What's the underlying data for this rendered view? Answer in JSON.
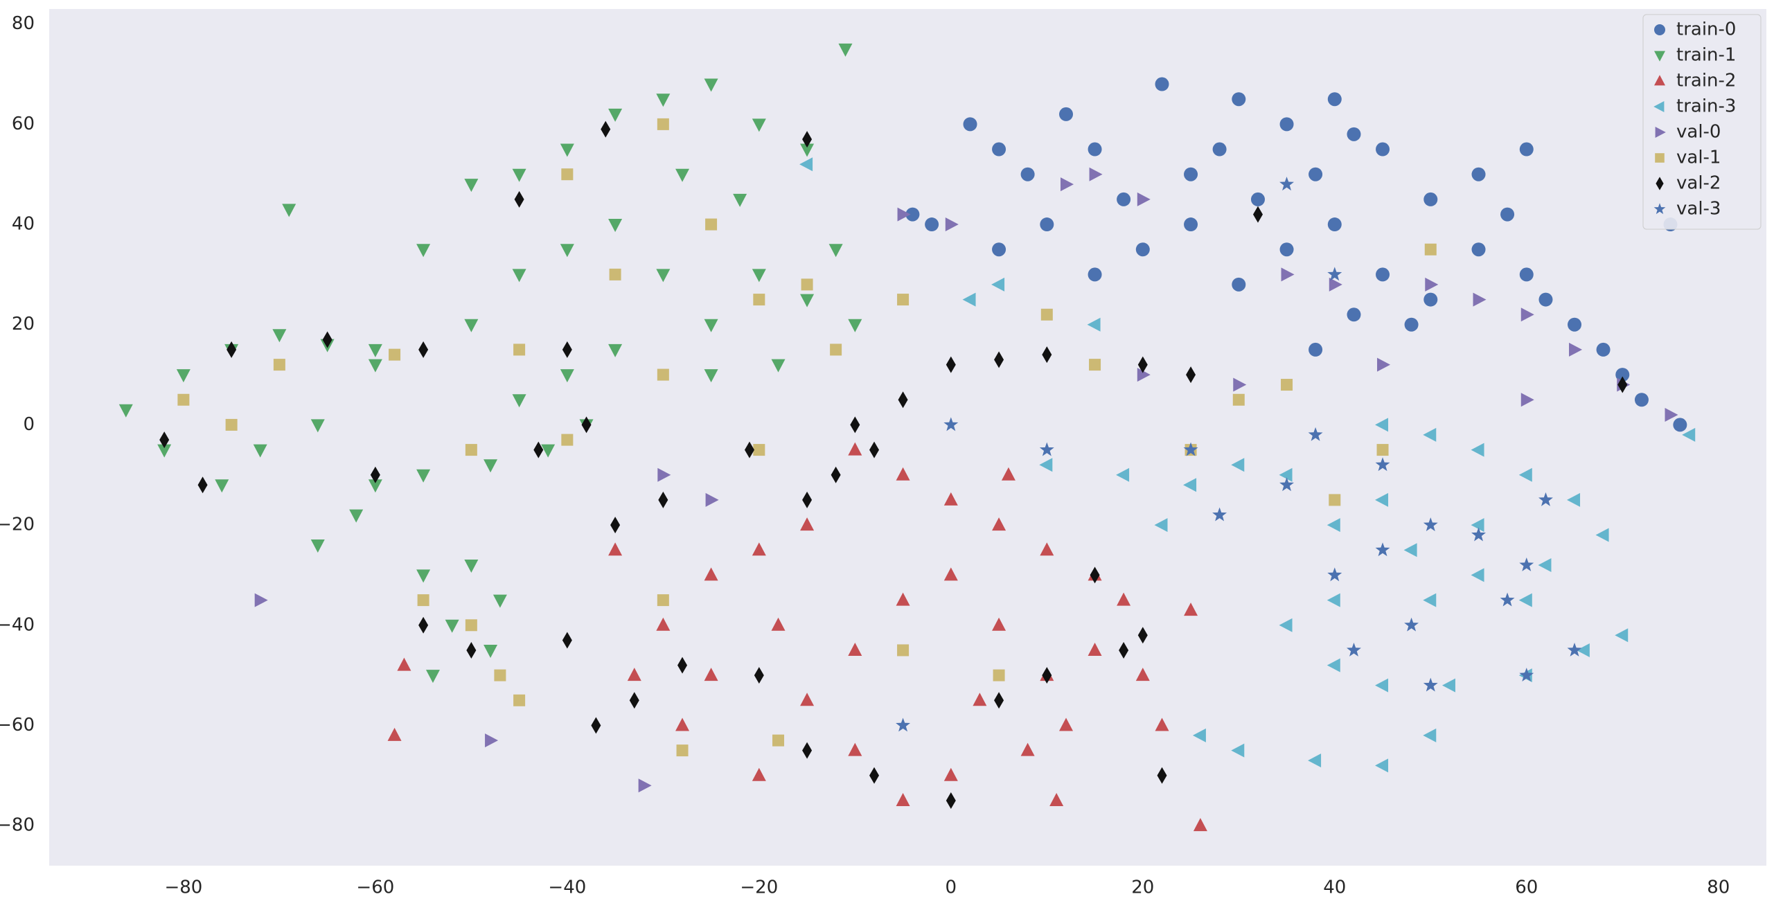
{
  "chart_data": {
    "type": "scatter",
    "xlim": [
      -94,
      85
    ],
    "ylim": [
      -88,
      83
    ],
    "xticks": [
      {
        "value": -80,
        "label": "−80"
      },
      {
        "value": -60,
        "label": "−60"
      },
      {
        "value": -40,
        "label": "−40"
      },
      {
        "value": -20,
        "label": "−20"
      },
      0,
      20,
      40,
      60,
      80
    ],
    "yticks": [
      {
        "value": -80,
        "label": "−80"
      },
      {
        "value": -60,
        "label": "−60"
      },
      {
        "value": -40,
        "label": "−40"
      },
      {
        "value": -20,
        "label": "−20"
      },
      0,
      20,
      40,
      60,
      80
    ],
    "grid": false,
    "legend": "upper right",
    "series": [
      {
        "name": "train-0",
        "color": "#4c72b0",
        "marker": "circle",
        "x": [
          -4,
          -2,
          2,
          5,
          8,
          12,
          15,
          18,
          10,
          20,
          25,
          28,
          30,
          22,
          35,
          38,
          40,
          42,
          45,
          40,
          35,
          30,
          45,
          50,
          55,
          48,
          42,
          38,
          55,
          60,
          62,
          65,
          68,
          70,
          72,
          76,
          60,
          58,
          25,
          15,
          5,
          32,
          50,
          75
        ],
        "y": [
          42,
          40,
          60,
          55,
          50,
          62,
          55,
          45,
          40,
          35,
          40,
          55,
          65,
          68,
          60,
          50,
          65,
          58,
          55,
          40,
          35,
          28,
          30,
          45,
          50,
          20,
          22,
          15,
          35,
          30,
          25,
          20,
          15,
          10,
          5,
          0,
          55,
          42,
          50,
          30,
          35,
          45,
          25,
          40
        ]
      },
      {
        "name": "train-1",
        "color": "#55a868",
        "marker": "tri-down",
        "x": [
          -25,
          -30,
          -35,
          -20,
          -15,
          -40,
          -45,
          -50,
          -28,
          -22,
          -35,
          -40,
          -45,
          -30,
          -20,
          -15,
          -10,
          -25,
          -35,
          -40,
          -45,
          -38,
          -42,
          -48,
          -55,
          -60,
          -62,
          -50,
          -55,
          -25,
          -18,
          -12,
          -69,
          -11,
          -86,
          -80,
          -75,
          -70,
          -65,
          -60,
          -82,
          -76,
          -72,
          -66,
          -55,
          -50,
          -52,
          -48,
          -54,
          -47,
          -66,
          -60
        ],
        "y": [
          68,
          65,
          62,
          60,
          55,
          55,
          50,
          48,
          50,
          45,
          40,
          35,
          30,
          30,
          30,
          25,
          20,
          20,
          15,
          10,
          5,
          0,
          -5,
          -8,
          -10,
          -12,
          -18,
          20,
          35,
          10,
          12,
          35,
          43,
          75,
          3,
          10,
          15,
          18,
          16,
          12,
          -5,
          -12,
          -5,
          0,
          -30,
          -28,
          -40,
          -45,
          -50,
          -35,
          -24,
          15
        ]
      },
      {
        "name": "train-2",
        "color": "#c44e52",
        "marker": "tri-up",
        "x": [
          -10,
          -5,
          0,
          5,
          10,
          -15,
          -20,
          -25,
          -30,
          -33,
          -28,
          -20,
          -15,
          -10,
          -5,
          0,
          5,
          10,
          15,
          18,
          12,
          8,
          0,
          -5,
          -10,
          3,
          -18,
          -25,
          15,
          20,
          -35,
          11,
          26,
          25,
          -58,
          -57,
          22,
          6
        ],
        "y": [
          -5,
          -10,
          -15,
          -20,
          -25,
          -20,
          -25,
          -30,
          -40,
          -50,
          -60,
          -70,
          -55,
          -45,
          -35,
          -30,
          -40,
          -50,
          -45,
          -35,
          -60,
          -65,
          -70,
          -75,
          -65,
          -55,
          -40,
          -50,
          -30,
          -50,
          -25,
          -75,
          -80,
          -37,
          -62,
          -48,
          -60,
          -10
        ]
      },
      {
        "name": "train-3",
        "color": "#64b5cd",
        "marker": "tri-left",
        "x": [
          45,
          50,
          55,
          60,
          65,
          68,
          62,
          55,
          48,
          40,
          35,
          30,
          25,
          22,
          40,
          35,
          40,
          45,
          52,
          60,
          66,
          70,
          45,
          55,
          50,
          60,
          26,
          30,
          38,
          45,
          50,
          18,
          10,
          2,
          5,
          -15,
          77,
          15
        ],
        "y": [
          0,
          -2,
          -5,
          -10,
          -15,
          -22,
          -28,
          -30,
          -25,
          -20,
          -10,
          -8,
          -12,
          -20,
          -35,
          -40,
          -48,
          -52,
          -52,
          -50,
          -45,
          -42,
          -15,
          -20,
          -35,
          -35,
          -62,
          -65,
          -67,
          -68,
          -62,
          -10,
          -8,
          25,
          28,
          52,
          -2,
          20
        ]
      },
      {
        "name": "val-0",
        "color": "#8172b2",
        "marker": "tri-right",
        "x": [
          -5,
          0,
          12,
          15,
          20,
          35,
          40,
          50,
          55,
          60,
          65,
          70,
          75,
          -72,
          -48,
          -30,
          -25,
          -32,
          20,
          30,
          45,
          60
        ],
        "y": [
          42,
          40,
          48,
          50,
          45,
          30,
          28,
          28,
          25,
          22,
          15,
          8,
          2,
          -35,
          -63,
          -10,
          -15,
          -72,
          10,
          8,
          12,
          5
        ]
      },
      {
        "name": "val-1",
        "color": "#ccb974",
        "marker": "square",
        "x": [
          -30,
          -40,
          -25,
          -35,
          -20,
          -45,
          -30,
          -40,
          -50,
          -80,
          -75,
          -70,
          -58,
          -55,
          -50,
          -47,
          -45,
          -28,
          -18,
          -20,
          -12,
          -5,
          10,
          15,
          25,
          30,
          35,
          40,
          45,
          50,
          -15,
          5,
          -5,
          -30
        ],
        "y": [
          60,
          50,
          40,
          30,
          25,
          15,
          10,
          -3,
          -5,
          5,
          0,
          12,
          14,
          -35,
          -40,
          -50,
          -55,
          -65,
          -63,
          -5,
          15,
          25,
          22,
          12,
          -5,
          5,
          8,
          -15,
          -5,
          35,
          28,
          -50,
          -45,
          -35
        ]
      },
      {
        "name": "val-2",
        "color": "#111111",
        "marker": "diamond",
        "x": [
          -5,
          -8,
          -10,
          -15,
          -12,
          -30,
          -35,
          -40,
          -33,
          -37,
          -28,
          -20,
          -15,
          -8,
          0,
          5,
          10,
          15,
          18,
          20,
          0,
          5,
          10,
          20,
          25,
          -75,
          -65,
          -55,
          -55,
          -50,
          -40,
          -38,
          -82,
          -78,
          -60,
          -43,
          -36,
          -15,
          -21,
          32,
          22,
          70,
          -45
        ],
        "y": [
          5,
          -5,
          0,
          -15,
          -10,
          -15,
          -20,
          -43,
          -55,
          -60,
          -48,
          -50,
          -65,
          -70,
          -75,
          -55,
          -50,
          -30,
          -45,
          -42,
          12,
          13,
          14,
          12,
          10,
          15,
          17,
          15,
          -40,
          -45,
          15,
          0,
          -3,
          -12,
          -10,
          -5,
          59,
          57,
          -5,
          42,
          -70,
          8,
          45
        ]
      },
      {
        "name": "val-3",
        "color": "#4c72b0",
        "marker": "star",
        "x": [
          40,
          45,
          50,
          55,
          60,
          62,
          58,
          48,
          42,
          50,
          60,
          65,
          35,
          28,
          45,
          38,
          10,
          0,
          -5,
          25,
          40,
          35
        ],
        "y": [
          -30,
          -25,
          -20,
          -22,
          -28,
          -15,
          -35,
          -40,
          -45,
          -52,
          -50,
          -45,
          -12,
          -18,
          -8,
          -2,
          -5,
          0,
          -60,
          -5,
          30,
          48
        ]
      }
    ]
  }
}
